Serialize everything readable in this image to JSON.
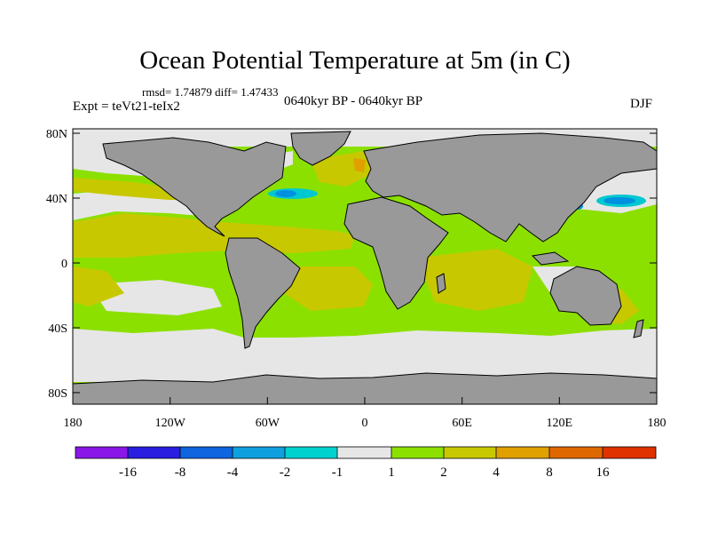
{
  "title": "Ocean Potential Temperature at 5m (in C)",
  "stats": "rmsd= 1.74879 diff= 1.47433",
  "experiment": "Expt = teVt21-teIx2",
  "period": "0640kyr BP - 0640kyr BP",
  "season": "DJF",
  "colors": {
    "land": "#999999",
    "coast": "#000000",
    "bin_-1_1": "#e6e6e6",
    "bin_1_2": "#8ce000",
    "bin_2_4": "#c8c800",
    "bin_4_8": "#e0a000",
    "bin_-2_-1": "#00c8d0",
    "bin_-4_-2": "#0090e0"
  },
  "map": {
    "projection": "cylindrical-equidistant",
    "lon_range": [
      -180,
      180
    ],
    "lat_range": [
      -90,
      90
    ],
    "lat_ticks": [
      "80N",
      "40N",
      "0",
      "40S",
      "80S"
    ],
    "lon_ticks": [
      "180",
      "120W",
      "60W",
      "0",
      "60E",
      "120E",
      "180"
    ]
  },
  "colorbar": {
    "colors": [
      "#8a17e8",
      "#2a1ee0",
      "#0f64e0",
      "#0fa0e0",
      "#00d2d0",
      "#e6e6e6",
      "#8ce000",
      "#c8c800",
      "#e0a000",
      "#e06800",
      "#e03200"
    ],
    "labels": [
      "-16",
      "-8",
      "-4",
      "-2",
      "-1",
      "1",
      "2",
      "4",
      "8",
      "16"
    ]
  }
}
